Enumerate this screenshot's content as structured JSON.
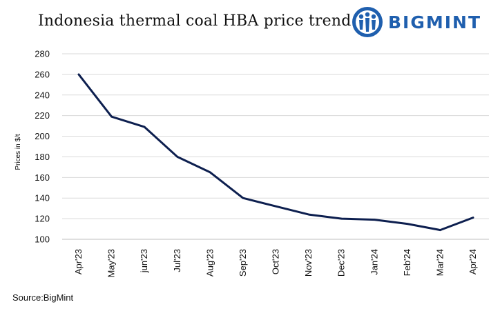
{
  "header": {
    "title": "Indonesia thermal coal HBA price trend",
    "logo_text": "BIGMINT",
    "logo_icon": "people-globe-icon",
    "logo_color": "#1f5fae"
  },
  "source": "Source:BigMint",
  "chart_data": {
    "type": "line",
    "title": "Indonesia thermal coal HBA price trend",
    "xlabel": "",
    "ylabel": "Prices in $/t",
    "ylim": [
      100,
      280
    ],
    "yticks": [
      100,
      120,
      140,
      160,
      180,
      200,
      220,
      240,
      260,
      280
    ],
    "grid": true,
    "legend": "none",
    "line_color": "#0d1f4f",
    "categories": [
      "Apr'23",
      "May'23",
      "Jun'23",
      "Jul'23",
      "Aug'23",
      "Sep'23",
      "Oct'23",
      "Nov'23",
      "Dec'23",
      "Jan'24",
      "Feb'24",
      "Mar'24",
      "Apr'24"
    ],
    "tick_labels": [
      "Apr'23",
      "May'23",
      "jun'23",
      "Jul'23",
      "Aug'23",
      "Sep'23",
      "Oct'23",
      "Nov'23",
      "Dec'23",
      "Jan'24",
      "Feb'24",
      "Mar'24",
      "Apr'24"
    ],
    "values": [
      260,
      219,
      209,
      180,
      165,
      140,
      132,
      124,
      120,
      119,
      115,
      109,
      121
    ]
  }
}
